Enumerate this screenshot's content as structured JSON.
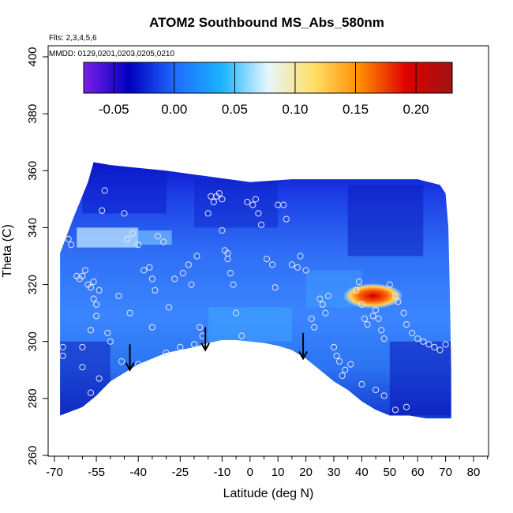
{
  "chart_data": {
    "type": "heatmap",
    "title": "ATOM2 Southbound MS_Abs_580nm",
    "xlabel": "Latitude (deg N)",
    "ylabel": "Theta (C)",
    "xlim": [
      -70,
      85
    ],
    "ylim": [
      260,
      405
    ],
    "x_ticks": [
      -70,
      -55,
      -40,
      -25,
      -10,
      0,
      10,
      20,
      30,
      40,
      50,
      60,
      70,
      80
    ],
    "x_tick_labels": [
      "-70",
      "-55",
      "-40",
      "-25",
      "-10",
      "0",
      "10",
      "20",
      "30",
      "40",
      "50",
      "60",
      "70",
      "80"
    ],
    "x_minor_ticks": [
      -65,
      -60,
      -50,
      -45,
      -35,
      -30,
      -20,
      -15,
      -5,
      5,
      15,
      25,
      35,
      45,
      55,
      65,
      75,
      85
    ],
    "y_ticks": [
      260,
      280,
      300,
      320,
      340,
      360,
      380,
      400
    ],
    "y_tick_labels": [
      "260",
      "280",
      "300",
      "320",
      "340",
      "360",
      "380",
      "400"
    ],
    "notes": {
      "flights": "Flts: 2,3,4,5,6",
      "dates": "MMDD: 0129,0201,0203,0205,0210"
    },
    "colorbar": {
      "range": [
        -0.075,
        0.23
      ],
      "ticks": [
        -0.05,
        0.0,
        0.05,
        0.1,
        0.15,
        0.2
      ],
      "tick_labels": [
        "-0.05",
        "0.00",
        "0.05",
        "0.10",
        "0.15",
        "0.20"
      ],
      "colors": [
        "#7a1fe6",
        "#0000c0",
        "#1e6cff",
        "#19b4ff",
        "#e6f6ff",
        "#ffe066",
        "#ff8c00",
        "#e00000",
        "#a01414"
      ]
    },
    "domain_outline": [
      [
        -68,
        274
      ],
      [
        -68,
        331
      ],
      [
        -63,
        344
      ],
      [
        -58,
        356
      ],
      [
        -56,
        363
      ],
      [
        -50,
        362
      ],
      [
        -40,
        361
      ],
      [
        -30,
        360
      ],
      [
        -15,
        358
      ],
      [
        0,
        356
      ],
      [
        15,
        357
      ],
      [
        30,
        357
      ],
      [
        45,
        357
      ],
      [
        60,
        357
      ],
      [
        64,
        356
      ],
      [
        68,
        355
      ],
      [
        70,
        352
      ],
      [
        71,
        340
      ],
      [
        71.5,
        318
      ],
      [
        72,
        290
      ],
      [
        72,
        273
      ],
      [
        63,
        273
      ],
      [
        57,
        274
      ],
      [
        50,
        274
      ],
      [
        45,
        276
      ],
      [
        40,
        279
      ],
      [
        35,
        283
      ],
      [
        30,
        286
      ],
      [
        25,
        290
      ],
      [
        20,
        294
      ],
      [
        15,
        297
      ],
      [
        10,
        298.5
      ],
      [
        5,
        299.5
      ],
      [
        0,
        300
      ],
      [
        -5,
        300.5
      ],
      [
        -10,
        300.5
      ],
      [
        -15,
        299.5
      ],
      [
        -20,
        298
      ],
      [
        -25,
        297
      ],
      [
        -30,
        296
      ],
      [
        -35,
        294
      ],
      [
        -40,
        292
      ],
      [
        -45,
        289
      ],
      [
        -50,
        286
      ],
      [
        -55,
        281
      ],
      [
        -60,
        277
      ]
    ],
    "hotspot": {
      "lat": 44,
      "theta": 316,
      "value": 0.22
    },
    "arrows": [
      {
        "lat": -43,
        "theta_top": 299,
        "theta_tip": 290
      },
      {
        "lat": -16,
        "theta_top": 305,
        "theta_tip": 297
      },
      {
        "lat": 19,
        "theta_top": 303,
        "theta_tip": 294
      }
    ],
    "points": [
      [
        -65,
        336
      ],
      [
        -64,
        334
      ],
      [
        -62,
        323
      ],
      [
        -61,
        322
      ],
      [
        -60,
        323
      ],
      [
        -59,
        325
      ],
      [
        -58,
        320
      ],
      [
        -57,
        319
      ],
      [
        -56,
        321
      ],
      [
        -56,
        315
      ],
      [
        -55,
        313
      ],
      [
        -54,
        318
      ],
      [
        -53,
        346
      ],
      [
        -52,
        353
      ],
      [
        -51,
        303
      ],
      [
        -50,
        300
      ],
      [
        -55,
        309
      ],
      [
        -57,
        304
      ],
      [
        -60,
        298
      ],
      [
        -67,
        298
      ],
      [
        -67,
        295
      ],
      [
        -60,
        291
      ],
      [
        -57,
        282
      ],
      [
        -54,
        287
      ],
      [
        -45,
        345
      ],
      [
        -44,
        336
      ],
      [
        -42,
        338
      ],
      [
        -40,
        334
      ],
      [
        -38,
        325
      ],
      [
        -36,
        326
      ],
      [
        -35,
        322
      ],
      [
        -34,
        318
      ],
      [
        -33,
        337
      ],
      [
        -31,
        335
      ],
      [
        -29,
        312
      ],
      [
        -27,
        322
      ],
      [
        -24,
        324
      ],
      [
        -22,
        327
      ],
      [
        -21,
        320
      ],
      [
        -19,
        330
      ],
      [
        -18,
        305
      ],
      [
        -17,
        302
      ],
      [
        -15,
        345
      ],
      [
        -14,
        351
      ],
      [
        -13,
        349
      ],
      [
        -12,
        351
      ],
      [
        -11,
        352
      ],
      [
        -10,
        350
      ],
      [
        -10,
        339
      ],
      [
        -9,
        332
      ],
      [
        -8,
        331
      ],
      [
        -8,
        329
      ],
      [
        -7,
        324
      ],
      [
        -6,
        320
      ],
      [
        -5,
        310
      ],
      [
        -3,
        302
      ],
      [
        -1,
        349
      ],
      [
        1,
        348
      ],
      [
        2,
        350
      ],
      [
        3,
        345
      ],
      [
        4,
        341
      ],
      [
        6,
        329
      ],
      [
        8,
        327
      ],
      [
        9,
        319
      ],
      [
        10,
        348
      ],
      [
        12,
        348
      ],
      [
        13,
        343
      ],
      [
        15,
        327
      ],
      [
        17,
        326
      ],
      [
        18,
        330
      ],
      [
        20,
        325
      ],
      [
        22,
        308
      ],
      [
        23,
        305
      ],
      [
        25,
        315
      ],
      [
        26,
        313
      ],
      [
        27,
        310
      ],
      [
        28,
        316
      ],
      [
        30,
        298
      ],
      [
        31,
        295
      ],
      [
        32,
        293
      ],
      [
        34,
        290
      ],
      [
        36,
        292
      ],
      [
        38,
        318
      ],
      [
        39,
        321
      ],
      [
        40,
        313
      ],
      [
        41,
        308
      ],
      [
        42,
        306
      ],
      [
        44,
        309
      ],
      [
        45,
        311
      ],
      [
        46,
        308
      ],
      [
        47,
        304
      ],
      [
        48,
        301
      ],
      [
        50,
        320
      ],
      [
        52,
        316
      ],
      [
        53,
        314
      ],
      [
        55,
        310
      ],
      [
        56,
        306
      ],
      [
        58,
        303
      ],
      [
        60,
        301
      ],
      [
        62,
        300
      ],
      [
        64,
        299
      ],
      [
        66,
        298
      ],
      [
        68,
        297
      ],
      [
        70,
        299
      ],
      [
        45,
        283
      ],
      [
        48,
        281
      ],
      [
        52,
        276
      ],
      [
        56,
        277
      ],
      [
        40,
        285
      ],
      [
        33,
        288
      ],
      [
        -46,
        293
      ],
      [
        -40,
        292
      ],
      [
        -30,
        296
      ],
      [
        -25,
        298
      ],
      [
        -20,
        299
      ],
      [
        -35,
        305
      ],
      [
        -43,
        310
      ],
      [
        -47,
        316
      ]
    ]
  }
}
